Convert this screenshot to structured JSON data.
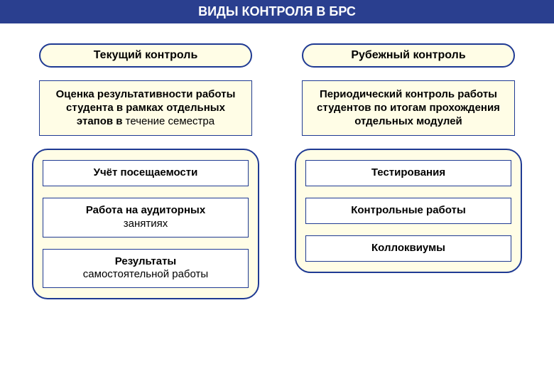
{
  "colors": {
    "header_bg": "#2a3f8f",
    "header_text": "#ffffff",
    "pill_bg": "#fffde6",
    "pill_border": "#1f3a93",
    "desc_bg": "#fffde6",
    "desc_border": "#1f3a93",
    "group_bg": "#fffde6",
    "group_border": "#1f3a93",
    "item_bg": "#ffffff",
    "item_border": "#1f3a93",
    "text_color": "#000000"
  },
  "typography": {
    "header_fontsize": 18,
    "pill_fontsize": 16,
    "desc_fontsize": 15,
    "item_fontsize": 15
  },
  "layout": {
    "pill_border_width": 2,
    "box_border_width": 1,
    "group_border_width": 2,
    "pill_radius": 18,
    "group_radius": 22
  },
  "header": "ВИДЫ КОНТРОЛЯ В БРС",
  "left": {
    "title": "Текущий контроль",
    "desc_bold": "Оценка результативности работы студента в рамках отдельных этапов в",
    "desc_plain": "течение семестра",
    "items": [
      {
        "bold": "Учёт посещаемости",
        "plain": ""
      },
      {
        "bold": "Работа на аудиторных",
        "plain": "занятиях"
      },
      {
        "bold": "Результаты",
        "plain": "самостоятельной работы"
      }
    ]
  },
  "right": {
    "title": "Рубежный контроль",
    "desc_bold": "Периодический контроль работы студентов по итогам прохождения отдельных модулей",
    "desc_plain": "",
    "items": [
      {
        "bold": "Тестирования",
        "plain": ""
      },
      {
        "bold": "Контрольные работы",
        "plain": ""
      },
      {
        "bold": "Коллоквиумы",
        "plain": ""
      }
    ]
  }
}
